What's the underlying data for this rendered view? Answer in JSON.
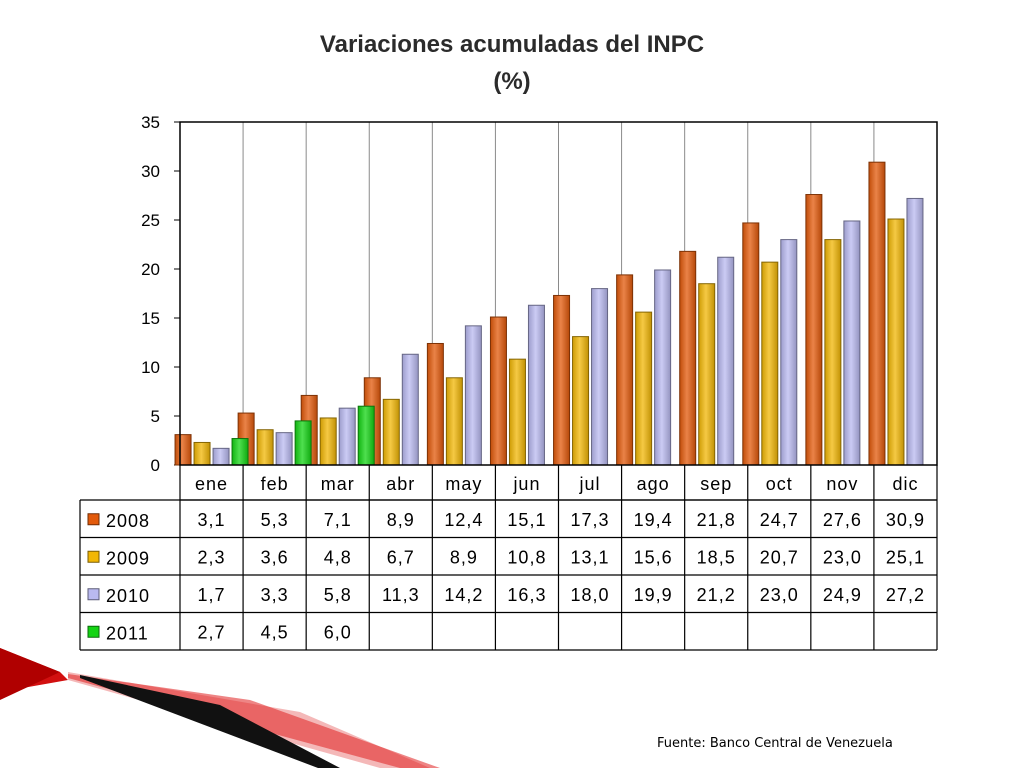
{
  "title_line1": "Variaciones acumuladas del INPC",
  "title_line2": "(%)",
  "source": "Fuente: Banco Central de Venezuela",
  "chart_data": {
    "type": "bar",
    "title": "Variaciones acumuladas del INPC (%)",
    "categories": [
      "ene",
      "feb",
      "mar",
      "abr",
      "may",
      "jun",
      "jul",
      "ago",
      "sep",
      "oct",
      "nov",
      "dic"
    ],
    "ylim": [
      0,
      35
    ],
    "yticks": [
      0,
      5,
      10,
      15,
      20,
      25,
      30,
      35
    ],
    "grid": "vertical category dividers",
    "legend": "data-table-left",
    "series": [
      {
        "name": "2008",
        "color": "#E35A0B",
        "values": [
          3.1,
          5.3,
          7.1,
          8.9,
          12.4,
          15.1,
          17.3,
          19.4,
          21.8,
          24.7,
          27.6,
          30.9
        ],
        "labels": [
          "3,1",
          "5,3",
          "7,1",
          "8,9",
          "12,4",
          "15,1",
          "17,3",
          "19,4",
          "21,8",
          "24,7",
          "27,6",
          "30,9"
        ]
      },
      {
        "name": "2009",
        "color": "#F2B705",
        "values": [
          2.3,
          3.6,
          4.8,
          6.7,
          8.9,
          10.8,
          13.1,
          15.6,
          18.5,
          20.7,
          23.0,
          25.1
        ],
        "labels": [
          "2,3",
          "3,6",
          "4,8",
          "6,7",
          "8,9",
          "10,8",
          "13,1",
          "15,6",
          "18,5",
          "20,7",
          "23,0",
          "25,1"
        ]
      },
      {
        "name": "2010",
        "color": "#B9B9F0",
        "values": [
          1.7,
          3.3,
          5.8,
          11.3,
          14.2,
          16.3,
          18.0,
          19.9,
          21.2,
          23.0,
          24.9,
          27.2
        ],
        "labels": [
          "1,7",
          "3,3",
          "5,8",
          "11,3",
          "14,2",
          "16,3",
          "18,0",
          "19,9",
          "21,2",
          "23,0",
          "24,9",
          "27,2"
        ]
      },
      {
        "name": "2011",
        "color": "#14D414",
        "values": [
          2.7,
          4.5,
          6.0,
          null,
          null,
          null,
          null,
          null,
          null,
          null,
          null,
          null
        ],
        "labels": [
          "2,7",
          "4,5",
          "6,0",
          "",
          "",
          "",
          "",
          "",
          "",
          "",
          "",
          ""
        ]
      }
    ]
  }
}
